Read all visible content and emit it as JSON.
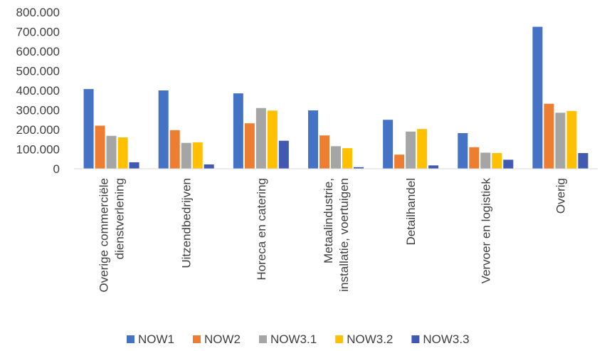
{
  "chart_data": {
    "type": "bar",
    "categories": [
      [
        "Overige commerciële",
        "dienstverlening"
      ],
      [
        "Uitzendbedrijven"
      ],
      [
        "Horeca en catering"
      ],
      [
        "Metaalindustrie,",
        "installatie, voertuigen"
      ],
      [
        "Detailhandel"
      ],
      [
        "Vervoer en logistiek"
      ],
      [
        "Overig"
      ]
    ],
    "series": [
      {
        "name": "NOW1",
        "color": "#4472C4",
        "values": [
          407000,
          400000,
          385000,
          298000,
          250000,
          182000,
          725000
        ]
      },
      {
        "name": "NOW2",
        "color": "#ED7D31",
        "values": [
          220000,
          197000,
          232000,
          170000,
          72000,
          110000,
          332000
        ]
      },
      {
        "name": "NOW3.1",
        "color": "#A5A5A5",
        "values": [
          168000,
          132000,
          310000,
          115000,
          190000,
          82000,
          286000
        ]
      },
      {
        "name": "NOW3.2",
        "color": "#FFC000",
        "values": [
          160000,
          135000,
          297000,
          105000,
          203000,
          80000,
          295000
        ]
      },
      {
        "name": "NOW3.3",
        "color": "#4159B0",
        "values": [
          33000,
          22000,
          143000,
          8000,
          17000,
          46000,
          80000
        ]
      }
    ],
    "yticks": [
      "0",
      "100.000",
      "200.000",
      "300.000",
      "400.000",
      "500.000",
      "600.000",
      "700.000",
      "800.000"
    ],
    "ylim": [
      0,
      800000
    ],
    "grid": false,
    "legend_position": "bottom"
  }
}
